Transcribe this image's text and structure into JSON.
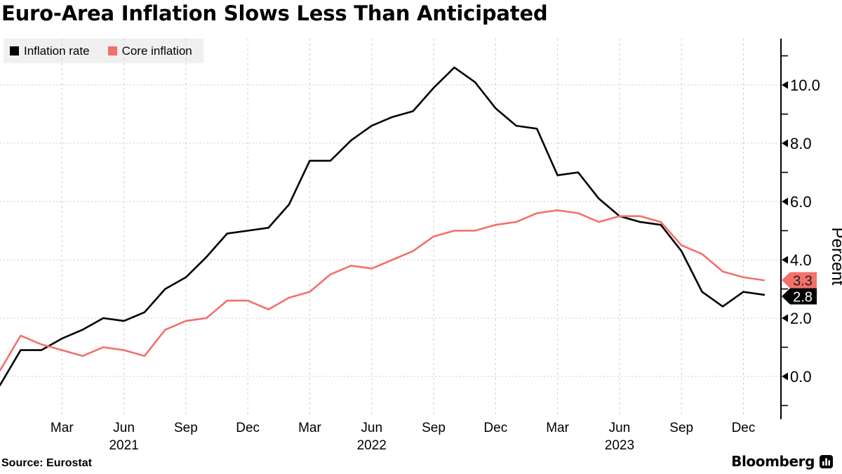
{
  "header": {
    "title": "Euro-Area Inflation Slows Less Than Anticipated"
  },
  "legend": {
    "items": [
      {
        "label": "Inflation rate",
        "color": "#000000"
      },
      {
        "label": "Core inflation",
        "color": "#f4706b"
      }
    ]
  },
  "footer": {
    "source": "Source: Eurostat",
    "brand": "Bloomberg",
    "brand_icon": "bloomberg-terminal-icon"
  },
  "chart_data": {
    "type": "line",
    "title": "Euro-Area Inflation Slows Less Than Anticipated",
    "ylabel": "Percent",
    "legend_position": "top-left",
    "grid": true,
    "categories": [
      "2020-12",
      "2021-01",
      "2021-02",
      "2021-03",
      "2021-04",
      "2021-05",
      "2021-06",
      "2021-07",
      "2021-08",
      "2021-09",
      "2021-10",
      "2021-11",
      "2021-12",
      "2022-01",
      "2022-02",
      "2022-03",
      "2022-04",
      "2022-05",
      "2022-06",
      "2022-07",
      "2022-08",
      "2022-09",
      "2022-10",
      "2022-11",
      "2022-12",
      "2023-01",
      "2023-02",
      "2023-03",
      "2023-04",
      "2023-05",
      "2023-06",
      "2023-07",
      "2023-08",
      "2023-09",
      "2023-10",
      "2023-11",
      "2023-12",
      "2024-01"
    ],
    "series": [
      {
        "name": "Inflation rate",
        "color": "#000000",
        "values": [
          -0.3,
          0.9,
          0.9,
          1.3,
          1.6,
          2.0,
          1.9,
          2.2,
          3.0,
          3.4,
          4.1,
          4.9,
          5.0,
          5.1,
          5.9,
          7.4,
          7.4,
          8.1,
          8.6,
          8.9,
          9.1,
          9.9,
          10.6,
          10.1,
          9.2,
          8.6,
          8.5,
          6.9,
          7.0,
          6.1,
          5.5,
          5.3,
          5.2,
          4.3,
          2.9,
          2.4,
          2.9,
          2.8
        ]
      },
      {
        "name": "Core inflation",
        "color": "#f4706b",
        "values": [
          0.2,
          1.4,
          1.1,
          0.9,
          0.7,
          1.0,
          0.9,
          0.7,
          1.6,
          1.9,
          2.0,
          2.6,
          2.6,
          2.3,
          2.7,
          2.9,
          3.5,
          3.8,
          3.7,
          4.0,
          4.3,
          4.8,
          5.0,
          5.0,
          5.2,
          5.3,
          5.6,
          5.7,
          5.6,
          5.3,
          5.5,
          5.5,
          5.3,
          4.5,
          4.2,
          3.6,
          3.4,
          3.3
        ]
      }
    ],
    "end_labels": [
      {
        "value": "3.3",
        "bg": "#f4706b",
        "fg": "#1f1f1f",
        "series": "Core inflation"
      },
      {
        "value": "2.8",
        "bg": "#000000",
        "fg": "#ffffff",
        "series": "Inflation rate"
      }
    ],
    "y_axis": {
      "label": "Percent",
      "side": "right",
      "major_ticks": [
        0,
        2,
        4,
        6,
        8,
        10
      ],
      "major_tick_labels": [
        "0.0",
        "2.0",
        "4.0",
        "6.0",
        "8.0",
        "10.0"
      ],
      "minor_ticks": [
        -1,
        1,
        3,
        5,
        7,
        9,
        11
      ],
      "range": [
        -1.6,
        11.6
      ]
    },
    "x_axis": {
      "quarter_ticks": [
        {
          "m": 3,
          "label": "Mar"
        },
        {
          "m": 6,
          "label": "Jun",
          "year": "2021"
        },
        {
          "m": 9,
          "label": "Sep"
        },
        {
          "m": 12,
          "label": "Dec"
        },
        {
          "m": 15,
          "label": "Mar"
        },
        {
          "m": 18,
          "label": "Jun",
          "year": "2022"
        },
        {
          "m": 21,
          "label": "Sep"
        },
        {
          "m": 24,
          "label": "Dec"
        },
        {
          "m": 27,
          "label": "Mar"
        },
        {
          "m": 30,
          "label": "Jun",
          "year": "2023"
        },
        {
          "m": 33,
          "label": "Sep"
        },
        {
          "m": 36,
          "label": "Dec"
        }
      ]
    },
    "colors": {
      "grid": "#cccccc",
      "axis": "#000000"
    }
  }
}
